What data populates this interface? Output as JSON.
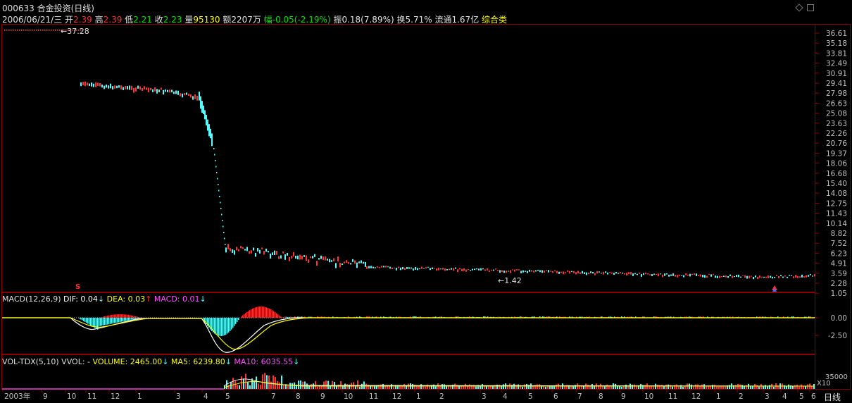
{
  "header": {
    "title": "000633 合金投资(日线)",
    "date": "2006/06/21/三",
    "open_label": "开",
    "open_value": "2.39",
    "high_label": "高",
    "high_value": "2.39",
    "low_label": "低",
    "low_value": "2.21",
    "close_label": "收",
    "close_value": "2.23",
    "volume_label": "量",
    "volume_value": "95130",
    "amount_label": "额",
    "amount_value": "2207万",
    "change_label": "幅",
    "change_value": "-0.05(-2.19%)",
    "amplitude_label": "振",
    "amplitude_value": "0.18(7.89%)",
    "turnover_label": "换",
    "turnover_value": "5.71%",
    "float_label": "流通",
    "float_value": "1.67亿",
    "category": "综合类"
  },
  "price_panel": {
    "annotation_high": "37.28",
    "annotation_low": "1.42",
    "y_ticks": [
      "36.61",
      "35.18",
      "33.81",
      "32.49",
      "30.91",
      "29.41",
      "27.98",
      "26.63",
      "25.08",
      "23.63",
      "22.26",
      "20.76",
      "19.37",
      "18.06",
      "16.68",
      "15.40",
      "14.08",
      "12.75",
      "11.43",
      "10.14",
      "8.82",
      "7.52",
      "6.23",
      "4.91",
      "3.59",
      "2.28",
      "1.05"
    ],
    "marker_s": "S"
  },
  "macd_panel": {
    "label": "MACD(12,26,9)",
    "dif": "DIF: 0.04",
    "dea": "DEA: 0.03",
    "macd": "MACD: 0.01",
    "y_ticks": [
      "0.00",
      "-2.50"
    ]
  },
  "volume_panel": {
    "label": "VOL-TDX(5,10) VVOL: -",
    "volume": "VOLUME: 2465.00",
    "ma5": "MA5: 6239.80",
    "ma10": "MA10: 6035.55",
    "y_tick": "35000",
    "unit": "X10"
  },
  "x_axis": {
    "labels": [
      "2003年",
      "9",
      "10",
      "11",
      "12",
      "1",
      "3",
      "4",
      "5",
      "7",
      "8",
      "9",
      "10",
      "11",
      "12",
      "1",
      "2",
      "3",
      "4",
      "5",
      "6",
      "7",
      "8",
      "9",
      "10",
      "11",
      "12",
      "1",
      "2",
      "3",
      "4",
      "5",
      "6"
    ]
  },
  "period_button": "日线",
  "colors": {
    "up": "#ff3232",
    "down": "#54fcfc",
    "dif": "#ffffff",
    "dea": "#ffff00",
    "macd": "#ff50ff",
    "frame": "#8b0000"
  }
}
